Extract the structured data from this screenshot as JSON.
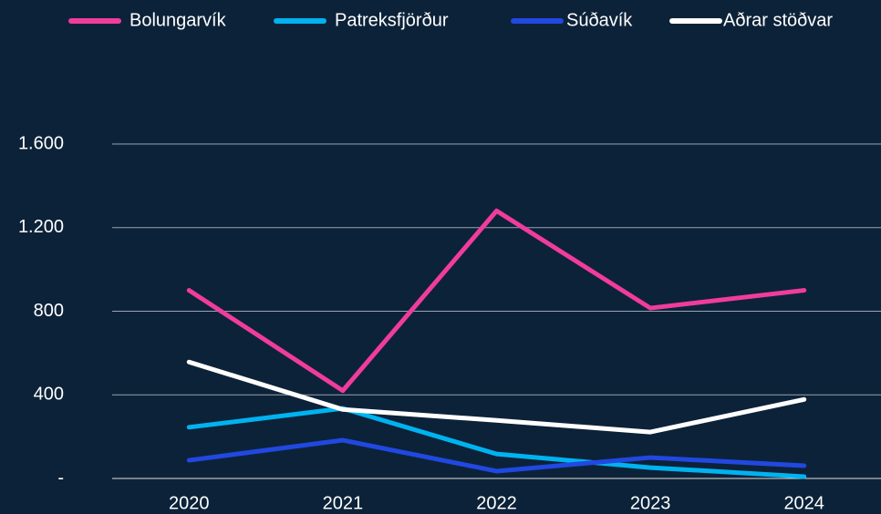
{
  "chart_data": {
    "type": "line",
    "categories": [
      "2020",
      "2021",
      "2022",
      "2023",
      "2024"
    ],
    "series": [
      {
        "name": "Bolungarvík",
        "color": "#f03c9c",
        "values": [
          900,
          420,
          1280,
          815,
          900
        ]
      },
      {
        "name": "Patreksfjörður",
        "color": "#00b3f0",
        "values": [
          245,
          335,
          117,
          52,
          9
        ]
      },
      {
        "name": "Súðavík",
        "color": "#2148e0",
        "values": [
          87,
          183,
          35,
          100,
          61
        ]
      },
      {
        "name": "Aðrar stöðvar",
        "color": "#ffffff",
        "values": [
          557,
          330,
          278,
          222,
          378
        ]
      }
    ],
    "ylim": [
      0,
      1600
    ],
    "yticks": [
      {
        "value": 0,
        "label": "-"
      },
      400,
      800,
      {
        "value": 1200,
        "label": "1.200"
      },
      {
        "value": 1600,
        "label": "1.600"
      }
    ],
    "grid": true,
    "legend": "top"
  }
}
